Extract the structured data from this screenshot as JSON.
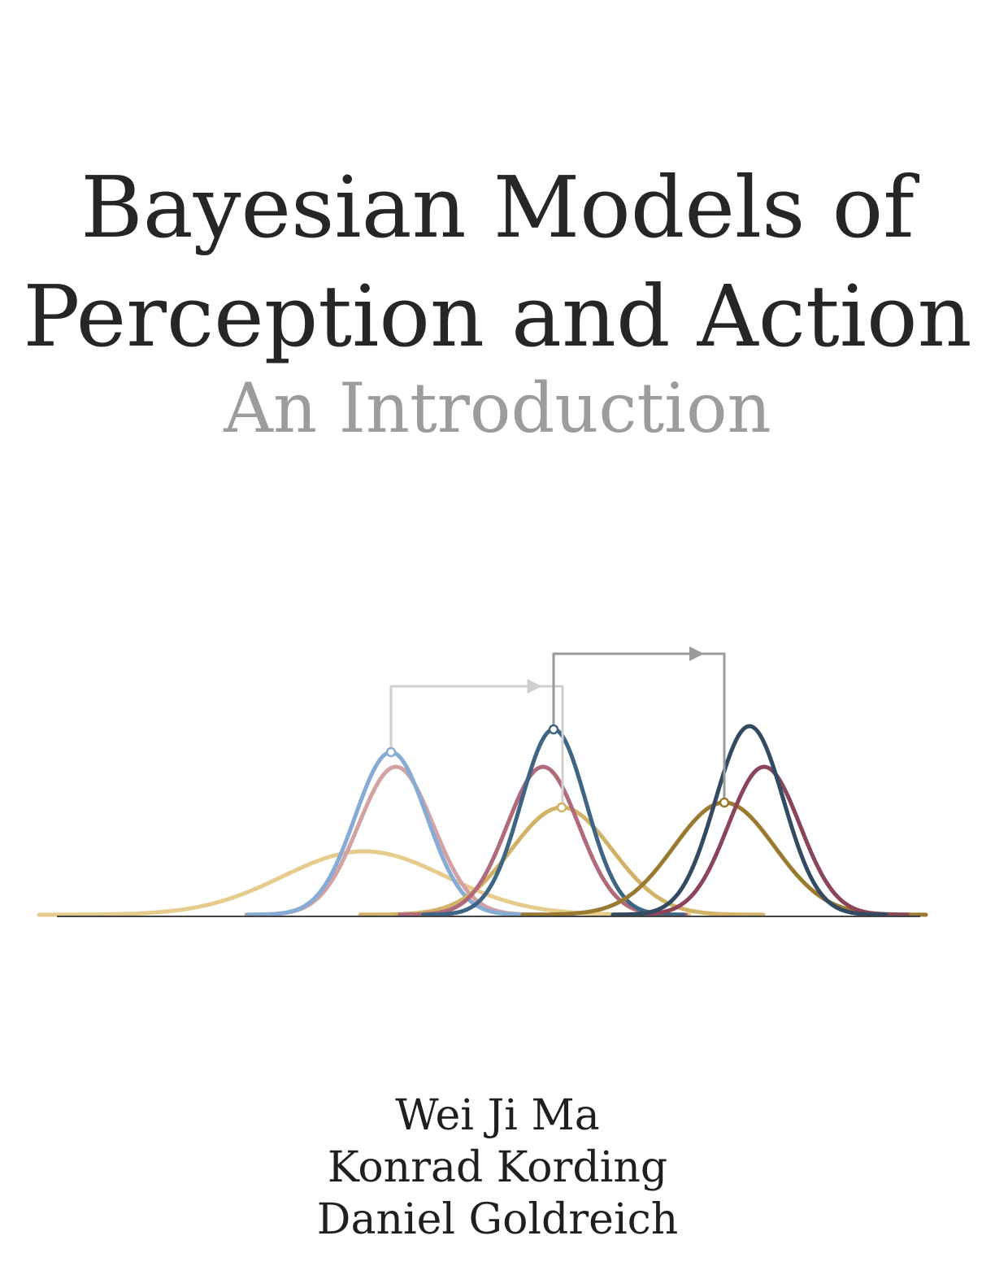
{
  "cover": {
    "title_lines": [
      "Bayesian Models of",
      "Perception and Action"
    ],
    "subtitle": "An Introduction",
    "authors": [
      "Wei Ji Ma",
      "Konrad Kording",
      "Daniel Goldreich"
    ]
  },
  "illustration": {
    "colors": {
      "prior_gold": "#e6cc8c",
      "likelihood_blue": "#86acd6",
      "likelihood_rose": "#d2a2a4",
      "gold_mid": "#d2b266",
      "rose_mid": "#b06a7a",
      "navy": "#3f6585",
      "gold_dark": "#9a7a30",
      "rose_dark": "#8a4658",
      "navy_dark": "#324a62",
      "arrow_light": "#cfcfcf",
      "arrow_dark": "#9a9a9a",
      "baseline": "#444444"
    }
  }
}
